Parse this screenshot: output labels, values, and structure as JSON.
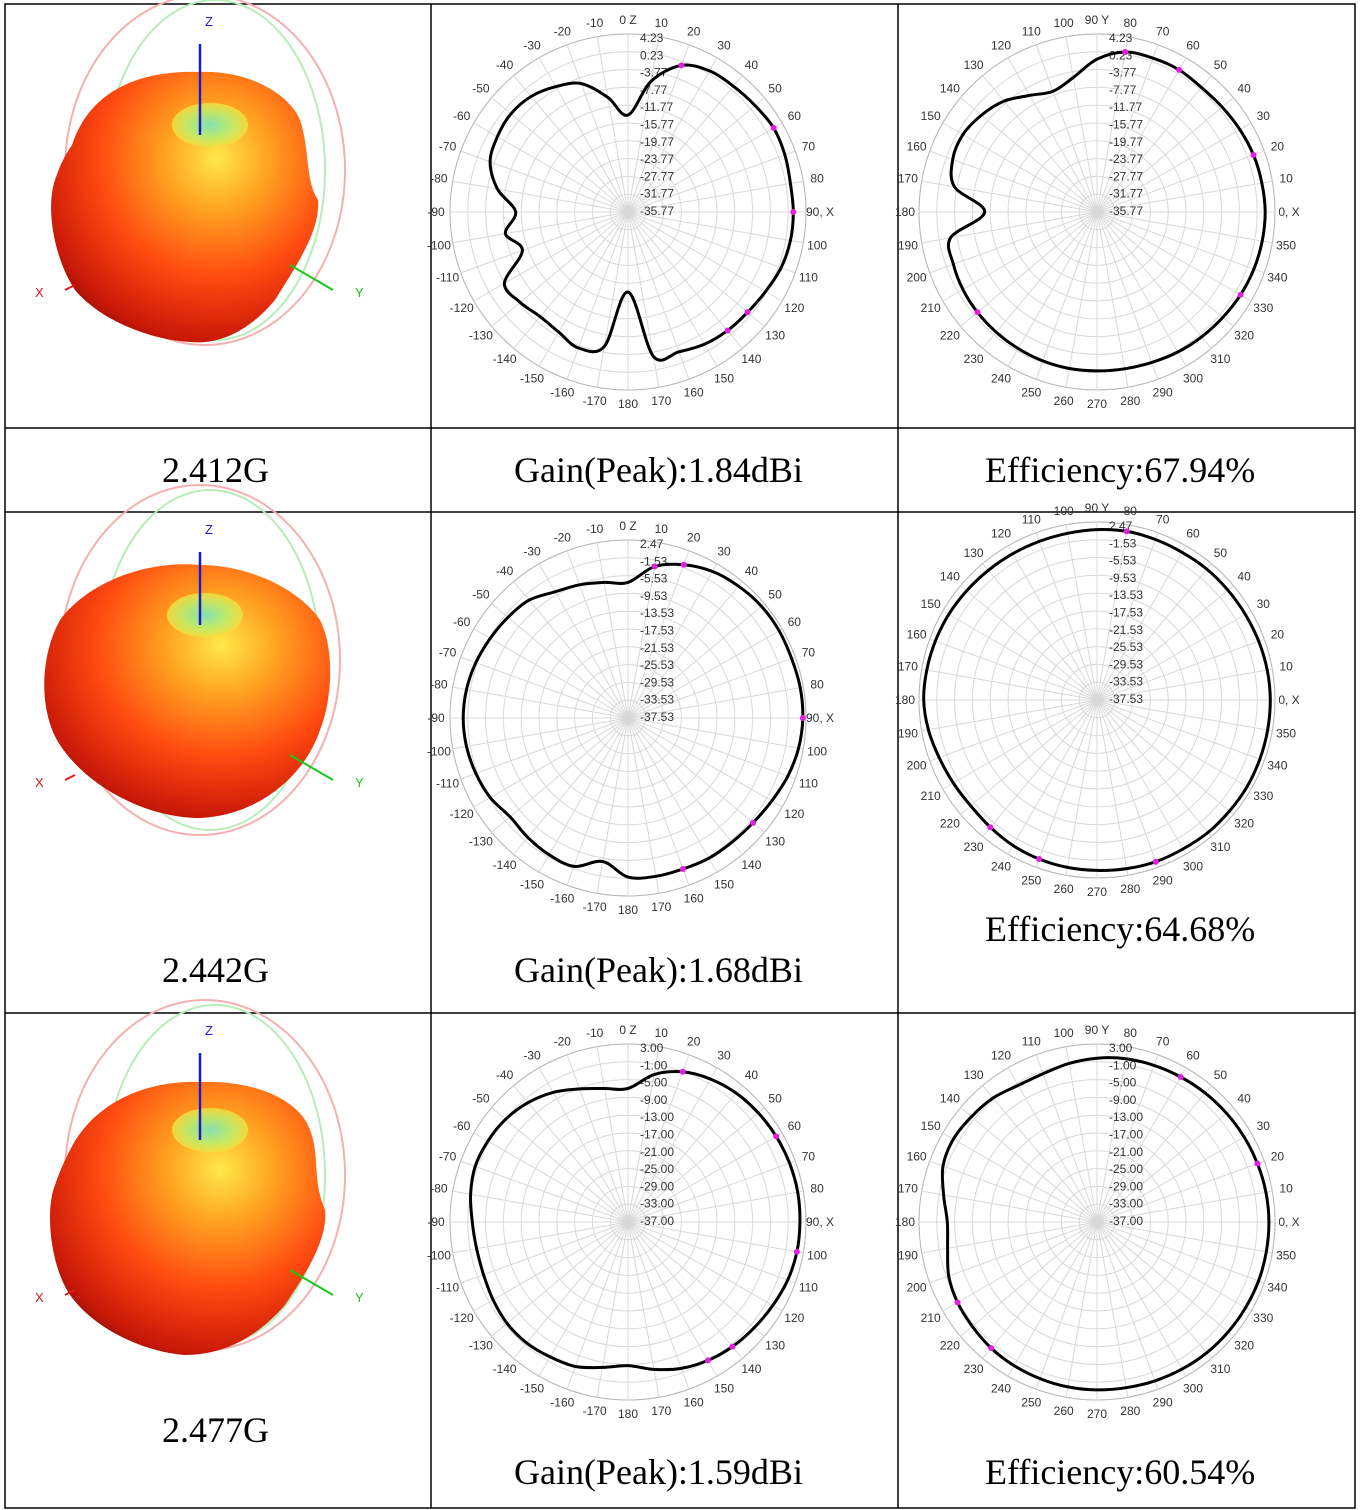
{
  "rows": [
    {
      "frequency": "2.412G",
      "gain_text": "Gain(Peak):1.84dBi",
      "efficiency_text": "Efficiency:67.94%",
      "pattern3d": {
        "z_label": "Z",
        "x_label": "X",
        "y_label": "Y"
      }
    },
    {
      "frequency": "2.442G",
      "gain_text": "Gain(Peak):1.68dBi",
      "efficiency_text": "Efficiency:64.68%",
      "pattern3d": {
        "z_label": "Z",
        "x_label": "X",
        "y_label": "Y"
      }
    },
    {
      "frequency": "2.477G",
      "gain_text": "Gain(Peak):1.59dBi",
      "efficiency_text": "Efficiency:60.54%",
      "pattern3d": {
        "z_label": "Z",
        "x_label": "X",
        "y_label": "Y"
      }
    }
  ],
  "colors": {
    "trace": "#000000",
    "marker": "#e020e0",
    "grid": "#d8d8d8",
    "axis_z": "#1a1ad0",
    "axis_x": "#e01818",
    "axis_y": "#18c818"
  },
  "chart_data": [
    {
      "type": "polar",
      "plane": "XZ",
      "row": 0,
      "angle_labels": [
        "0 Z",
        "10",
        "20",
        "30",
        "40",
        "50",
        "60",
        "70",
        "80",
        "90, X",
        "100",
        "110",
        "120",
        "130",
        "140",
        "150",
        "160",
        "170",
        "180",
        "-170",
        "-160",
        "-150",
        "-140",
        "-130",
        "-120",
        "-110",
        "-100",
        "-90",
        "-80",
        "-70",
        "-60",
        "-50",
        "-40",
        "-30",
        "-20",
        "-10"
      ],
      "radial_labels": [
        "4.23",
        "0.23",
        "-3.77",
        "-7.77",
        "-11.77",
        "-15.77",
        "-19.77",
        "-23.77",
        "-27.77",
        "-31.77",
        "-35.77"
      ],
      "rlim": [
        -39.77,
        4.23
      ],
      "pattern": {
        "angles": [
          0,
          10,
          20,
          30,
          40,
          50,
          60,
          70,
          80,
          90,
          100,
          110,
          120,
          130,
          140,
          150,
          160,
          170,
          180,
          -170,
          -160,
          -150,
          -140,
          -130,
          -120,
          -110,
          -100,
          -90,
          -80,
          -70,
          -60,
          -50,
          -40,
          -30,
          -20,
          -10
        ],
        "gain_dbi": [
          -15.8,
          -7,
          -1.2,
          0.5,
          0.8,
          1.2,
          1.8,
          1.5,
          1,
          1.1,
          1,
          0.5,
          -0.5,
          -1.2,
          -1.5,
          -2,
          -3,
          -3.5,
          -20,
          -6,
          -4,
          -5.5,
          -6,
          -5,
          -4.5,
          -12,
          -9,
          -12,
          -7,
          -3.5,
          -2.5,
          -2,
          -2.5,
          -4,
          -6,
          -11
        ]
      },
      "markers": [
        {
          "angle": 20,
          "gain_dbi": -1.2
        },
        {
          "angle": 60,
          "gain_dbi": 1.8
        },
        {
          "angle": 90,
          "gain_dbi": 1.1
        },
        {
          "angle": 130,
          "gain_dbi": -1.2
        },
        {
          "angle": 140,
          "gain_dbi": -1.5
        }
      ]
    },
    {
      "type": "polar",
      "plane": "XY",
      "row": 0,
      "angle_labels": [
        "0, X",
        "10",
        "20",
        "30",
        "40",
        "50",
        "60",
        "70",
        "80",
        "90 Y",
        "100",
        "110",
        "120",
        "130",
        "140",
        "150",
        "160",
        "170",
        "180",
        "190",
        "200",
        "210",
        "220",
        "230",
        "240",
        "250",
        "260",
        "270",
        "280",
        "290",
        "300",
        "310",
        "320",
        "330",
        "340",
        "350"
      ],
      "radial_labels": [
        "4.23",
        "0.23",
        "-3.77",
        "-7.77",
        "-11.77",
        "-15.77",
        "-19.77",
        "-23.77",
        "-27.77",
        "-31.77",
        "-35.77"
      ],
      "rlim": [
        -39.77,
        4.23
      ],
      "pattern": {
        "angles": [
          0,
          10,
          20,
          30,
          40,
          50,
          60,
          70,
          80,
          90,
          100,
          110,
          120,
          130,
          140,
          150,
          160,
          170,
          180,
          190,
          200,
          210,
          220,
          230,
          240,
          250,
          260,
          270,
          280,
          290,
          300,
          310,
          320,
          330,
          340,
          350
        ],
        "gain_dbi": [
          1.8,
          1.6,
          1.4,
          1,
          0.6,
          0.4,
          0.8,
          0.7,
          0.4,
          -2,
          -6,
          -8,
          -6.5,
          -4,
          -2.5,
          -1.5,
          -1.8,
          -4,
          -12,
          -3,
          -2,
          -1.5,
          -1.2,
          -1,
          -0.8,
          -0.6,
          -0.5,
          -0.5,
          -0.4,
          -0.2,
          0.2,
          0.5,
          0.8,
          1.2,
          1.5,
          1.7
        ]
      },
      "markers": [
        {
          "angle": 20,
          "gain_dbi": 1.4
        },
        {
          "angle": 60,
          "gain_dbi": 0.8
        },
        {
          "angle": 80,
          "gain_dbi": 0.4
        },
        {
          "angle": 220,
          "gain_dbi": -1.2
        },
        {
          "angle": 330,
          "gain_dbi": 1.2
        }
      ]
    },
    {
      "type": "polar",
      "plane": "XZ",
      "row": 1,
      "angle_labels": [
        "0 Z",
        "10",
        "20",
        "30",
        "40",
        "50",
        "60",
        "70",
        "80",
        "90, X",
        "100",
        "110",
        "120",
        "130",
        "140",
        "150",
        "160",
        "170",
        "180",
        "-170",
        "-160",
        "-150",
        "-140",
        "-130",
        "-120",
        "-110",
        "-100",
        "-90",
        "-80",
        "-70",
        "-60",
        "-50",
        "-40",
        "-30",
        "-20",
        "-10"
      ],
      "radial_labels": [
        "2.47",
        "-1.53",
        "-5.53",
        "-9.53",
        "-13.53",
        "-17.53",
        "-21.53",
        "-25.53",
        "-29.53",
        "-33.53",
        "-37.53"
      ],
      "rlim": [
        -41.53,
        2.47
      ],
      "pattern": {
        "angles": [
          0,
          10,
          20,
          30,
          40,
          50,
          60,
          70,
          80,
          90,
          100,
          110,
          120,
          130,
          140,
          150,
          160,
          170,
          180,
          -170,
          -160,
          -150,
          -140,
          -130,
          -120,
          -110,
          -100,
          -90,
          -80,
          -70,
          -60,
          -50,
          -40,
          -30,
          -20,
          -10
        ],
        "gain_dbi": [
          -8,
          -3.5,
          -1.2,
          0.3,
          1,
          1.5,
          1.6,
          1.5,
          1.7,
          1.68,
          1.3,
          0.5,
          -0.5,
          -1.2,
          -1.5,
          -1.5,
          -1.8,
          -1.8,
          -2.2,
          -5.5,
          -2.5,
          -2.5,
          -3,
          -3.5,
          -2.2,
          -1.5,
          -1,
          -0.8,
          -1,
          -1.5,
          -2.2,
          -2.8,
          -3.5,
          -5.5,
          -6.5,
          -7.5
        ]
      },
      "markers": [
        {
          "angle": 10,
          "gain_dbi": -3.5
        },
        {
          "angle": 20,
          "gain_dbi": -1.2
        },
        {
          "angle": 90,
          "gain_dbi": 1.68
        },
        {
          "angle": 130,
          "gain_dbi": -1.2
        },
        {
          "angle": 160,
          "gain_dbi": -1.8
        }
      ]
    },
    {
      "type": "polar",
      "plane": "XY",
      "row": 1,
      "angle_labels": [
        "0, X",
        "10",
        "20",
        "30",
        "40",
        "50",
        "60",
        "70",
        "80",
        "90 Y",
        "100",
        "110",
        "120",
        "130",
        "140",
        "150",
        "160",
        "170",
        "180",
        "190",
        "200",
        "210",
        "220",
        "230",
        "240",
        "250",
        "260",
        "270",
        "280",
        "290",
        "300",
        "310",
        "320",
        "330",
        "340",
        "350"
      ],
      "radial_labels": [
        "2.47",
        "-1.53",
        "-5.53",
        "-9.53",
        "-13.53",
        "-17.53",
        "-21.53",
        "-25.53",
        "-29.53",
        "-33.53",
        "-37.53"
      ],
      "rlim": [
        -41.53,
        2.47
      ],
      "pattern": {
        "angles": [
          0,
          10,
          20,
          30,
          40,
          50,
          60,
          70,
          80,
          90,
          100,
          110,
          120,
          130,
          140,
          150,
          160,
          170,
          180,
          190,
          200,
          210,
          220,
          230,
          240,
          250,
          260,
          270,
          280,
          290,
          300,
          310,
          320,
          330,
          340,
          350
        ],
        "gain_dbi": [
          1.3,
          1.2,
          1,
          0.8,
          0.7,
          0.7,
          0.6,
          0.7,
          0.8,
          0.6,
          0.3,
          0.2,
          0.2,
          0.3,
          0.5,
          0.8,
          1,
          1.2,
          1.3,
          0.8,
          0,
          -0.5,
          -0.8,
          -0.5,
          0,
          0.3,
          0.5,
          0.6,
          0.8,
          1,
          1,
          1.2,
          1.2,
          1.3,
          1.3,
          1.3
        ]
      },
      "markers": [
        {
          "angle": 80,
          "gain_dbi": 0.8
        },
        {
          "angle": 230,
          "gain_dbi": -0.5
        },
        {
          "angle": 250,
          "gain_dbi": 0.3
        },
        {
          "angle": 290,
          "gain_dbi": 1
        }
      ]
    },
    {
      "type": "polar",
      "plane": "XZ",
      "row": 2,
      "angle_labels": [
        "0 Z",
        "10",
        "20",
        "30",
        "40",
        "50",
        "60",
        "70",
        "80",
        "90, X",
        "100",
        "110",
        "120",
        "130",
        "140",
        "150",
        "160",
        "170",
        "180",
        "-170",
        "-160",
        "-150",
        "-140",
        "-130",
        "-120",
        "-110",
        "-100",
        "-90",
        "-80",
        "-70",
        "-60",
        "-50",
        "-40",
        "-30",
        "-20",
        "-10"
      ],
      "radial_labels": [
        "3.00",
        "-1.00",
        "-5.00",
        "-9.00",
        "-13.00",
        "-17.00",
        "-21.00",
        "-25.00",
        "-29.00",
        "-33.00",
        "-37.00"
      ],
      "rlim": [
        -41,
        3
      ],
      "pattern": {
        "angles": [
          0,
          10,
          20,
          30,
          40,
          50,
          60,
          70,
          80,
          90,
          100,
          110,
          120,
          130,
          140,
          150,
          160,
          170,
          180,
          -170,
          -160,
          -150,
          -140,
          -130,
          -120,
          -110,
          -100,
          -90,
          -80,
          -70,
          -60,
          -50,
          -40,
          -30,
          -20,
          -10
        ],
        "gain_dbi": [
          -8,
          -4,
          -1.5,
          -0.2,
          0.6,
          1,
          1.3,
          1.5,
          1.6,
          1.5,
          1.4,
          1,
          0.3,
          -0.3,
          -0.8,
          -1.5,
          -2.5,
          -4,
          -5.5,
          -4.5,
          -3,
          -2.5,
          -2,
          -2,
          -2.5,
          -3,
          -3,
          -2.5,
          -1.5,
          -0.8,
          -1,
          -1.5,
          -2.5,
          -4,
          -6,
          -7.5
        ]
      },
      "markers": [
        {
          "angle": 20,
          "gain_dbi": -1.5
        },
        {
          "angle": 60,
          "gain_dbi": 1.3
        },
        {
          "angle": 100,
          "gain_dbi": 1.4
        },
        {
          "angle": 140,
          "gain_dbi": -0.8
        },
        {
          "angle": 150,
          "gain_dbi": -1.5
        }
      ]
    },
    {
      "type": "polar",
      "plane": "XY",
      "row": 2,
      "angle_labels": [
        "0, X",
        "10",
        "20",
        "30",
        "40",
        "50",
        "60",
        "70",
        "80",
        "90 Y",
        "100",
        "110",
        "120",
        "130",
        "140",
        "150",
        "160",
        "170",
        "180",
        "190",
        "200",
        "210",
        "220",
        "230",
        "240",
        "250",
        "260",
        "270",
        "280",
        "290",
        "300",
        "310",
        "320",
        "330",
        "340",
        "350"
      ],
      "radial_labels": [
        "3.00",
        "-1.00",
        "-5.00",
        "-9.00",
        "-13.00",
        "-17.00",
        "-21.00",
        "-25.00",
        "-29.00",
        "-33.00",
        "-37.00"
      ],
      "rlim": [
        -41,
        3
      ],
      "pattern": {
        "angles": [
          0,
          10,
          20,
          30,
          40,
          50,
          60,
          70,
          80,
          90,
          100,
          110,
          120,
          130,
          140,
          150,
          160,
          170,
          180,
          190,
          200,
          210,
          220,
          230,
          240,
          250,
          260,
          270,
          280,
          290,
          300,
          310,
          320,
          330,
          340,
          350
        ],
        "gain_dbi": [
          1.5,
          1.4,
          1.2,
          1,
          0.8,
          0.6,
          0.4,
          0.2,
          0,
          -0.5,
          -1.2,
          -2,
          -2,
          -1,
          -0.5,
          0,
          -0.5,
          -2.5,
          -4,
          -3.5,
          -2,
          -1.2,
          -0.8,
          -0.3,
          0,
          0.2,
          0.4,
          0.5,
          0.6,
          0.8,
          1,
          1.2,
          1.3,
          1.4,
          1.5,
          1.5
        ]
      },
      "markers": [
        {
          "angle": 20,
          "gain_dbi": 1.2
        },
        {
          "angle": 60,
          "gain_dbi": 0.4
        },
        {
          "angle": 210,
          "gain_dbi": -1.2
        },
        {
          "angle": 230,
          "gain_dbi": -0.3
        }
      ]
    }
  ]
}
